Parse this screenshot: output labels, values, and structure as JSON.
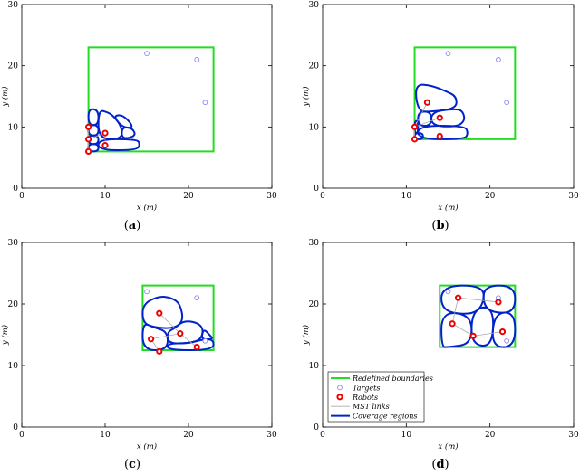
{
  "chart_data": [
    {
      "panel": "(a)",
      "caption_letter": "a",
      "type": "scatter",
      "xlabel": "x (m)",
      "ylabel": "y (m)",
      "xlim": [
        0,
        30
      ],
      "ylim": [
        0,
        30
      ],
      "xticks": [
        0,
        10,
        20,
        30
      ],
      "yticks": [
        0,
        10,
        20,
        30
      ],
      "boundary": {
        "x": [
          8,
          23
        ],
        "y": [
          6,
          23
        ]
      },
      "targets": [
        [
          15,
          22
        ],
        [
          21,
          21
        ],
        [
          22,
          14
        ]
      ],
      "robots": [
        [
          8,
          10
        ],
        [
          8,
          8
        ],
        [
          8,
          6
        ],
        [
          10,
          9
        ],
        [
          10,
          7
        ]
      ],
      "mst_links": [
        [
          0,
          1
        ],
        [
          1,
          2
        ],
        [
          1,
          3
        ],
        [
          3,
          4
        ]
      ],
      "regions": [
        [
          [
            8,
            13
          ],
          [
            9.2,
            12.8
          ],
          [
            9.2,
            10.3
          ],
          [
            8,
            10.3
          ]
        ],
        [
          [
            8,
            10.3
          ],
          [
            9.2,
            10.3
          ],
          [
            9.2,
            8.6
          ],
          [
            8,
            8.6
          ]
        ],
        [
          [
            8,
            8.6
          ],
          [
            9.2,
            8.6
          ],
          [
            9.2,
            7.2
          ],
          [
            8,
            7.2
          ]
        ],
        [
          [
            8,
            7.2
          ],
          [
            9.2,
            7.2
          ],
          [
            9.2,
            6
          ],
          [
            8,
            6
          ]
        ],
        [
          [
            9.2,
            12.8
          ],
          [
            10.3,
            12.4
          ],
          [
            11,
            11.8
          ],
          [
            12,
            10
          ],
          [
            12,
            8
          ],
          [
            9.2,
            8
          ]
        ],
        [
          [
            11,
            11.8
          ],
          [
            12,
            12
          ],
          [
            13,
            10.8
          ],
          [
            13.3,
            9.8
          ],
          [
            12,
            10
          ]
        ],
        [
          [
            12,
            10
          ],
          [
            13.3,
            9.8
          ],
          [
            13.7,
            8.5
          ],
          [
            12,
            8
          ]
        ],
        [
          [
            9.2,
            8
          ],
          [
            13.8,
            8
          ],
          [
            14.2,
            7.2
          ],
          [
            13.8,
            6.2
          ],
          [
            9.2,
            6.2
          ]
        ]
      ]
    },
    {
      "panel": "(b)",
      "caption_letter": "b",
      "type": "scatter",
      "xlabel": "x (m)",
      "ylabel": "y (m)",
      "xlim": [
        0,
        30
      ],
      "ylim": [
        0,
        30
      ],
      "xticks": [
        0,
        10,
        20,
        30
      ],
      "yticks": [
        0,
        10,
        20,
        30
      ],
      "boundary": {
        "x": [
          11,
          23
        ],
        "y": [
          8,
          23
        ]
      },
      "targets": [
        [
          15,
          22
        ],
        [
          21,
          21
        ],
        [
          22,
          14
        ]
      ],
      "robots": [
        [
          11,
          10
        ],
        [
          11,
          8
        ],
        [
          12.5,
          14
        ],
        [
          14,
          11.5
        ],
        [
          14,
          8.5
        ]
      ],
      "mst_links": [
        [
          0,
          1
        ],
        [
          0,
          2
        ],
        [
          0,
          3
        ],
        [
          3,
          4
        ]
      ],
      "regions": [
        [
          [
            11,
            17
          ],
          [
            13,
            16.8
          ],
          [
            14.8,
            15.8
          ],
          [
            16,
            15
          ],
          [
            16,
            13
          ],
          [
            13,
            12.5
          ],
          [
            11.4,
            12.5
          ]
        ],
        [
          [
            11.4,
            12.5
          ],
          [
            13,
            12.5
          ],
          [
            13,
            10.2
          ],
          [
            11.4,
            10.2
          ]
        ],
        [
          [
            11,
            11
          ],
          [
            11.4,
            11
          ],
          [
            11.4,
            9
          ],
          [
            11,
            9
          ]
        ],
        [
          [
            11,
            9
          ],
          [
            12,
            9
          ],
          [
            12,
            8
          ],
          [
            11,
            8
          ]
        ],
        [
          [
            13,
            12.5
          ],
          [
            16,
            13
          ],
          [
            16.8,
            12.5
          ],
          [
            17,
            11
          ],
          [
            16,
            10
          ],
          [
            13,
            10.2
          ]
        ],
        [
          [
            11.4,
            10.2
          ],
          [
            17,
            10.2
          ],
          [
            17.4,
            9
          ],
          [
            17,
            8
          ],
          [
            11.4,
            8
          ]
        ]
      ]
    },
    {
      "panel": "(c)",
      "caption_letter": "c",
      "type": "scatter",
      "xlabel": "x (m)",
      "ylabel": "y (m)",
      "xlim": [
        0,
        30
      ],
      "ylim": [
        0,
        30
      ],
      "xticks": [
        0,
        10,
        20,
        30
      ],
      "yticks": [
        0,
        10,
        20,
        30
      ],
      "boundary": {
        "x": [
          14.5,
          23
        ],
        "y": [
          12.5,
          23
        ]
      },
      "targets": [
        [
          15,
          22
        ],
        [
          21,
          21
        ],
        [
          22,
          14
        ]
      ],
      "robots": [
        [
          16.5,
          18.5
        ],
        [
          15.5,
          14.3
        ],
        [
          16.5,
          12.3
        ],
        [
          19,
          15.2
        ],
        [
          21,
          13
        ]
      ],
      "mst_links": [
        [
          0,
          3
        ],
        [
          1,
          3
        ],
        [
          1,
          2
        ],
        [
          3,
          4
        ]
      ],
      "regions": [
        [
          [
            14.5,
            20
          ],
          [
            16.5,
            21.3
          ],
          [
            18,
            21
          ],
          [
            19,
            20
          ],
          [
            19.4,
            17.3
          ],
          [
            18.3,
            16
          ],
          [
            15.8,
            16.2
          ],
          [
            14.5,
            17
          ]
        ],
        [
          [
            14.5,
            17
          ],
          [
            15.8,
            16.2
          ],
          [
            17.5,
            15.5
          ],
          [
            17.5,
            12.5
          ],
          [
            14.5,
            12.5
          ]
        ],
        [
          [
            17.5,
            15.5
          ],
          [
            18.3,
            16
          ],
          [
            19.4,
            17.3
          ],
          [
            21,
            17
          ],
          [
            21.8,
            16
          ],
          [
            21.5,
            14.2
          ],
          [
            20,
            13.6
          ],
          [
            17.5,
            13.6
          ]
        ],
        [
          [
            17.5,
            13.6
          ],
          [
            20,
            13.6
          ],
          [
            21.5,
            14.2
          ],
          [
            23,
            14.3
          ],
          [
            23,
            12.5
          ],
          [
            17.5,
            12.5
          ]
        ],
        [
          [
            21.8,
            16
          ],
          [
            22.5,
            15
          ],
          [
            23,
            14.3
          ],
          [
            21.5,
            14.2
          ]
        ]
      ]
    },
    {
      "panel": "(d)",
      "caption_letter": "d",
      "type": "scatter",
      "xlabel": "x (m)",
      "ylabel": "y (m)",
      "xlim": [
        0,
        30
      ],
      "ylim": [
        0,
        30
      ],
      "xticks": [
        0,
        10,
        20,
        30
      ],
      "yticks": [
        0,
        10,
        20,
        30
      ],
      "boundary": {
        "x": [
          14,
          23
        ],
        "y": [
          13,
          23
        ]
      },
      "targets": [
        [
          15,
          22
        ],
        [
          21,
          21
        ],
        [
          22,
          14
        ]
      ],
      "robots": [
        [
          16.2,
          21
        ],
        [
          21,
          20.3
        ],
        [
          15.5,
          16.8
        ],
        [
          18,
          14.8
        ],
        [
          21.5,
          15.5
        ]
      ],
      "mst_links": [
        [
          0,
          2
        ],
        [
          0,
          1
        ],
        [
          2,
          3
        ],
        [
          3,
          4
        ]
      ],
      "regions": [
        [
          [
            14.2,
            23
          ],
          [
            19.3,
            23
          ],
          [
            19.2,
            19.8
          ],
          [
            17.8,
            18.2
          ],
          [
            14.2,
            18.8
          ]
        ],
        [
          [
            19.3,
            23
          ],
          [
            23,
            23
          ],
          [
            23,
            18.7
          ],
          [
            20.5,
            18.5
          ],
          [
            19.2,
            19.8
          ]
        ],
        [
          [
            14.2,
            18.8
          ],
          [
            17.8,
            18.2
          ],
          [
            17.8,
            13.5
          ],
          [
            15,
            13
          ],
          [
            14.2,
            13
          ]
        ],
        [
          [
            17.8,
            18.2
          ],
          [
            19.2,
            19.8
          ],
          [
            20.5,
            18.5
          ],
          [
            20.2,
            13
          ],
          [
            17.8,
            13.5
          ]
        ],
        [
          [
            20.5,
            18.5
          ],
          [
            23,
            18.7
          ],
          [
            23,
            13
          ],
          [
            20.2,
            13
          ]
        ]
      ]
    }
  ],
  "legend": {
    "boundary": "Redefined boundaries",
    "targets": "Targets",
    "robots": "Robots",
    "mst": "MST links",
    "regions": "Coverage regions"
  },
  "colors": {
    "boundary": "#22dd22",
    "region": "#0022cc",
    "robot": "#ee0000",
    "target": "#8888ee",
    "mst": "#aaaaaa"
  }
}
